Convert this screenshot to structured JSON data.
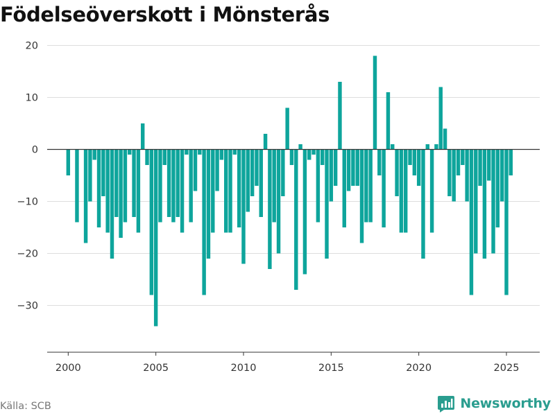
{
  "title": "Födelseöverskott i Mönsterås",
  "source": "Källa: SCB",
  "brand": "Newsworthy",
  "colors": {
    "bar": "#0ea59c",
    "brand": "#2a9d8f",
    "grid": "#dddddd",
    "axis": "#333333"
  },
  "chart_data": {
    "type": "bar",
    "title": "Födelseöverskott i Mönsterås",
    "xlabel": "",
    "ylabel": "",
    "x_start": 2000.0,
    "x_step": 0.25,
    "xlim": [
      1998.8,
      2026.9
    ],
    "ylim": [
      -39,
      21
    ],
    "yticks": [
      20,
      10,
      0,
      -10,
      -20,
      -30
    ],
    "xticks": [
      2000,
      2005,
      2010,
      2015,
      2020,
      2025
    ],
    "grid": true,
    "values": [
      -5,
      0,
      -14,
      0,
      -18,
      -10,
      -2,
      -15,
      -9,
      -16,
      -21,
      -13,
      -17,
      -14,
      -1,
      -13,
      -16,
      5,
      -3,
      -28,
      -34,
      -14,
      -3,
      -13,
      -14,
      -13,
      -16,
      -1,
      -14,
      -8,
      -1,
      -28,
      -21,
      -16,
      -8,
      -2,
      -16,
      -16,
      -1,
      -15,
      -22,
      -12,
      -9,
      -7,
      -13,
      3,
      -23,
      -14,
      -20,
      -9,
      8,
      -3,
      -27,
      1,
      -24,
      -2,
      -1,
      -14,
      -3,
      -21,
      -10,
      -7,
      13,
      -15,
      -8,
      -7,
      -7,
      -18,
      -14,
      -14,
      18,
      -5,
      -15,
      11,
      1,
      -9,
      -16,
      -16,
      -3,
      -5,
      -7,
      -21,
      1,
      -16,
      1,
      12,
      4,
      -9,
      -10,
      -5,
      -3,
      -10,
      -28,
      -20,
      -7,
      -21,
      -6,
      -20,
      -15,
      -10,
      -28,
      -5
    ]
  }
}
